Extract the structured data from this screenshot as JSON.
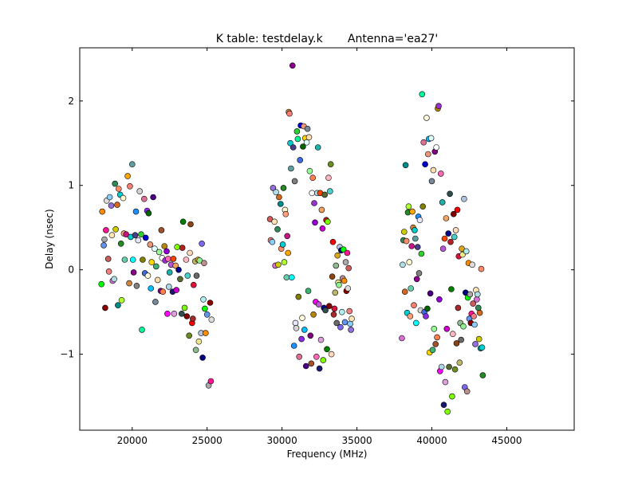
{
  "chart_data": {
    "type": "scatter",
    "title": "K table: testdelay.k       Antenna='ea27'",
    "xlabel": "Frequency (MHz)",
    "ylabel": "Delay (nsec)",
    "xlim": [
      16500,
      49500
    ],
    "ylim": [
      -1.9,
      2.63
    ],
    "xticks": [
      20000,
      25000,
      30000,
      35000,
      40000,
      45000
    ],
    "xtick_labels": [
      "20000",
      "25000",
      "30000",
      "35000",
      "40000",
      "45000"
    ],
    "yticks": [
      -1,
      0,
      1,
      2
    ],
    "ytick_labels": [
      "−1",
      "0",
      "1",
      "2"
    ],
    "grid": false,
    "legend": "none",
    "marker": "circle",
    "palette": [
      "#00ff00",
      "#0000cc",
      "#ff0000",
      "#00cccc",
      "#cc00cc",
      "#cccc00",
      "#ffffff",
      "#ff8c00",
      "#8a2be2",
      "#a52a2a",
      "#5f9ea0",
      "#7fff00",
      "#d2691e",
      "#ff7f50",
      "#6495ed",
      "#fff8dc",
      "#dc143c",
      "#00ffff",
      "#00008b",
      "#008b8b",
      "#b8860b",
      "#a9a9a9",
      "#006400",
      "#bdb76b",
      "#8b008b",
      "#556b2f",
      "#ff8c69",
      "#9932cc",
      "#8b0000",
      "#e9967a",
      "#8fbc8f",
      "#483d8b",
      "#2f4f4f",
      "#00ced1",
      "#9400d3",
      "#ff1493",
      "#00bfff",
      "#696969",
      "#1e90ff",
      "#b22222",
      "#228b22",
      "#ff00ff",
      "#dcdcdc",
      "#ffd700",
      "#daa520",
      "#808080",
      "#008000",
      "#adff2f",
      "#ff69b4",
      "#cd5c5c",
      "#4b0082",
      "#f0e68c",
      "#e6e6fa",
      "#7cfc00",
      "#fffacd",
      "#add8e6",
      "#f08080",
      "#e0ffff",
      "#90ee90",
      "#d3d3d3",
      "#ffb6c1",
      "#ffa07a",
      "#20b2aa",
      "#87cefa",
      "#778899",
      "#b0c4de",
      "#32cd32",
      "#800000",
      "#66cdaa",
      "#ba55d3",
      "#9370db",
      "#3cb371",
      "#7b68ee",
      "#00fa9a",
      "#48d1cc",
      "#c71585",
      "#191970",
      "#ffe4b5",
      "#ffdead",
      "#000080",
      "#808000",
      "#6b8e23",
      "#ffa500",
      "#ff4500",
      "#da70d6",
      "#98fb98",
      "#afeeee",
      "#db7093",
      "#ffdab9",
      "#cd853f",
      "#dda0dd",
      "#b0e0e6",
      "#800080",
      "#bc8f8f",
      "#4169e1",
      "#8b4513",
      "#fa8072",
      "#f4a460",
      "#2e8b57",
      "#a0522d"
    ],
    "points": [
      [
        17950,
        -0.17
      ],
      [
        18000,
        0.69
      ],
      [
        18100,
        0.29
      ],
      [
        18150,
        0.36
      ],
      [
        18200,
        -0.45
      ],
      [
        18250,
        0.47
      ],
      [
        18300,
        0.82
      ],
      [
        18400,
        0.13
      ],
      [
        18450,
        -0.02
      ],
      [
        18500,
        0.86
      ],
      [
        18600,
        0.76
      ],
      [
        18650,
        0.41
      ],
      [
        18700,
        -0.13
      ],
      [
        18800,
        -0.11
      ],
      [
        18850,
        1.02
      ],
      [
        18900,
        0.48
      ],
      [
        19000,
        0.77
      ],
      [
        19050,
        -0.42
      ],
      [
        19100,
        0.96
      ],
      [
        19200,
        0.89
      ],
      [
        19250,
        0.31
      ],
      [
        19300,
        -0.36
      ],
      [
        19400,
        0.85
      ],
      [
        19450,
        0.43
      ],
      [
        19500,
        0.12
      ],
      [
        19600,
        0.42
      ],
      [
        19700,
        1.11
      ],
      [
        19800,
        -0.16
      ],
      [
        19850,
        0.99
      ],
      [
        19900,
        0.39
      ],
      [
        20000,
        1.25
      ],
      [
        20050,
        0.12
      ],
      [
        20100,
        -0.03
      ],
      [
        20200,
        0.41
      ],
      [
        20250,
        0.69
      ],
      [
        20300,
        -0.19
      ],
      [
        20400,
        0.35
      ],
      [
        20500,
        0.93
      ],
      [
        20600,
        0.42
      ],
      [
        20650,
        -0.71
      ],
      [
        20700,
        0.12
      ],
      [
        20800,
        0.84
      ],
      [
        20850,
        -0.04
      ],
      [
        20900,
        0.38
      ],
      [
        21000,
        0.7
      ],
      [
        21050,
        -0.07
      ],
      [
        21100,
        0.67
      ],
      [
        21200,
        0.3
      ],
      [
        21250,
        -0.22
      ],
      [
        21300,
        0.09
      ],
      [
        21400,
        0.86
      ],
      [
        21500,
        0.25
      ],
      [
        21550,
        -0.38
      ],
      [
        21600,
        0.04
      ],
      [
        21700,
        -0.12
      ],
      [
        21800,
        0.21
      ],
      [
        21900,
        -0.25
      ],
      [
        21950,
        0.47
      ],
      [
        22000,
        0.14
      ],
      [
        22050,
        -0.26
      ],
      [
        22150,
        0.28
      ],
      [
        22200,
        0.11
      ],
      [
        22300,
        0.22
      ],
      [
        22350,
        -0.52
      ],
      [
        22400,
        0.13
      ],
      [
        22450,
        -0.2
      ],
      [
        22500,
        -0.03
      ],
      [
        22600,
        0.06
      ],
      [
        22700,
        -0.26
      ],
      [
        22750,
        0.13
      ],
      [
        22800,
        -0.52
      ],
      [
        22900,
        0.05
      ],
      [
        22950,
        -0.24
      ],
      [
        23000,
        0.27
      ],
      [
        23100,
        0.0
      ],
      [
        23200,
        -0.11
      ],
      [
        23300,
        -0.52
      ],
      [
        23350,
        0.26
      ],
      [
        23400,
        0.57
      ],
      [
        23500,
        -0.45
      ],
      [
        23600,
        0.12
      ],
      [
        23650,
        -0.55
      ],
      [
        23700,
        -0.07
      ],
      [
        23800,
        -0.78
      ],
      [
        23850,
        0.2
      ],
      [
        23900,
        0.54
      ],
      [
        24000,
        -0.63
      ],
      [
        24050,
        -0.58
      ],
      [
        24100,
        -0.18
      ],
      [
        24200,
        0.1
      ],
      [
        24250,
        -0.95
      ],
      [
        24300,
        -0.07
      ],
      [
        24400,
        0.12
      ],
      [
        24450,
        -0.85
      ],
      [
        24500,
        0.11
      ],
      [
        24600,
        -0.75
      ],
      [
        24650,
        0.31
      ],
      [
        24700,
        -1.04
      ],
      [
        24750,
        -0.35
      ],
      [
        24800,
        0.08
      ],
      [
        24850,
        -0.46
      ],
      [
        24900,
        -0.75
      ],
      [
        25000,
        -0.53
      ],
      [
        25100,
        -1.37
      ],
      [
        25200,
        -0.39
      ],
      [
        25250,
        -1.32
      ],
      [
        25300,
        -0.59
      ],
      [
        29200,
        0.6
      ],
      [
        29250,
        0.35
      ],
      [
        29350,
        0.33
      ],
      [
        29400,
        0.97
      ],
      [
        29500,
        0.57
      ],
      [
        29550,
        0.05
      ],
      [
        29600,
        0.92
      ],
      [
        29700,
        0.48
      ],
      [
        29750,
        0.06
      ],
      [
        29800,
        0.86
      ],
      [
        29900,
        0.78
      ],
      [
        29950,
        0.25
      ],
      [
        30050,
        0.3
      ],
      [
        30100,
        0.97
      ],
      [
        30150,
        0.09
      ],
      [
        30200,
        0.71
      ],
      [
        30250,
        0.66
      ],
      [
        30300,
        -0.09
      ],
      [
        30350,
        0.4
      ],
      [
        30400,
        0.2
      ],
      [
        30450,
        1.87
      ],
      [
        30500,
        1.85
      ],
      [
        30550,
        1.5
      ],
      [
        30600,
        1.2
      ],
      [
        30650,
        -0.09
      ],
      [
        30700,
        2.42
      ],
      [
        30750,
        1.45
      ],
      [
        30800,
        -0.9
      ],
      [
        30850,
        1.05
      ],
      [
        30900,
        -0.63
      ],
      [
        30950,
        -0.69
      ],
      [
        31000,
        1.64
      ],
      [
        31050,
        1.55
      ],
      [
        31100,
        -0.32
      ],
      [
        31150,
        -1.03
      ],
      [
        31200,
        1.3
      ],
      [
        31250,
        1.71
      ],
      [
        31300,
        -0.82
      ],
      [
        31350,
        -0.57
      ],
      [
        31400,
        1.46
      ],
      [
        31450,
        1.7
      ],
      [
        31500,
        -0.71
      ],
      [
        31550,
        1.56
      ],
      [
        31600,
        -1.14
      ],
      [
        31650,
        1.51
      ],
      [
        31700,
        1.67
      ],
      [
        31750,
        -0.25
      ],
      [
        31800,
        1.57
      ],
      [
        31850,
        1.17
      ],
      [
        31900,
        -0.78
      ],
      [
        31950,
        -1.11
      ],
      [
        32000,
        0.91
      ],
      [
        32050,
        1.09
      ],
      [
        32100,
        -0.53
      ],
      [
        32150,
        0.79
      ],
      [
        32200,
        0.56
      ],
      [
        32250,
        -0.38
      ],
      [
        32300,
        -1.03
      ],
      [
        32350,
        0.91
      ],
      [
        32400,
        1.45
      ],
      [
        32450,
        -0.41
      ],
      [
        32500,
        -1.17
      ],
      [
        32550,
        0.91
      ],
      [
        32600,
        -0.83
      ],
      [
        32650,
        0.71
      ],
      [
        32700,
        0.49
      ],
      [
        32750,
        -1.07
      ],
      [
        32800,
        -0.45
      ],
      [
        32850,
        0.89
      ],
      [
        32900,
        -0.48
      ],
      [
        32950,
        0.59
      ],
      [
        33000,
        -0.94
      ],
      [
        33050,
        0.57
      ],
      [
        33100,
        1.09
      ],
      [
        33150,
        -0.43
      ],
      [
        33200,
        0.93
      ],
      [
        33250,
        1.25
      ],
      [
        33300,
        -1.0
      ],
      [
        33350,
        -0.08
      ],
      [
        33400,
        0.33
      ],
      [
        33450,
        -0.53
      ],
      [
        33500,
        -0.46
      ],
      [
        33550,
        -0.27
      ],
      [
        33600,
        0.05
      ],
      [
        33650,
        -0.63
      ],
      [
        33700,
        0.17
      ],
      [
        33750,
        -0.15
      ],
      [
        33800,
        -0.18
      ],
      [
        33850,
        0.27
      ],
      [
        33900,
        -0.68
      ],
      [
        33950,
        0.23
      ],
      [
        34000,
        -0.5
      ],
      [
        34050,
        -0.1
      ],
      [
        34100,
        0.24
      ],
      [
        34150,
        -0.13
      ],
      [
        34200,
        -0.62
      ],
      [
        34250,
        0.09
      ],
      [
        34300,
        -0.25
      ],
      [
        34350,
        0.2
      ],
      [
        34400,
        -0.22
      ],
      [
        34450,
        0.02
      ],
      [
        34500,
        -0.49
      ],
      [
        34550,
        -0.64
      ],
      [
        34600,
        -0.71
      ],
      [
        34650,
        -0.58
      ],
      [
        38000,
        -0.81
      ],
      [
        38050,
        0.06
      ],
      [
        38100,
        0.35
      ],
      [
        38150,
        0.45
      ],
      [
        38200,
        -0.26
      ],
      [
        38250,
        1.24
      ],
      [
        38300,
        0.34
      ],
      [
        38350,
        -0.51
      ],
      [
        38400,
        0.68
      ],
      [
        38450,
        0.75
      ],
      [
        38500,
        0.09
      ],
      [
        38550,
        -0.55
      ],
      [
        38600,
        -0.22
      ],
      [
        38650,
        0.28
      ],
      [
        38700,
        0.69
      ],
      [
        38750,
        0.5
      ],
      [
        38800,
        -0.42
      ],
      [
        38850,
        0.47
      ],
      [
        38900,
        0.37
      ],
      [
        38950,
        -0.63
      ],
      [
        39000,
        -0.11
      ],
      [
        39050,
        0.27
      ],
      [
        39100,
        0.63
      ],
      [
        39150,
        -0.04
      ],
      [
        39200,
        0.59
      ],
      [
        39250,
        -0.48
      ],
      [
        39300,
        0.19
      ],
      [
        39350,
        2.08
      ],
      [
        39400,
        0.75
      ],
      [
        39450,
        1.51
      ],
      [
        39500,
        -0.5
      ],
      [
        39550,
        1.25
      ],
      [
        39600,
        -0.55
      ],
      [
        39650,
        1.8
      ],
      [
        39700,
        -0.46
      ],
      [
        39750,
        1.37
      ],
      [
        39800,
        1.55
      ],
      [
        39850,
        -0.98
      ],
      [
        39900,
        -0.28
      ],
      [
        39950,
        1.56
      ],
      [
        40000,
        1.05
      ],
      [
        40050,
        -0.95
      ],
      [
        40100,
        1.18
      ],
      [
        40150,
        -0.7
      ],
      [
        40200,
        1.4
      ],
      [
        40250,
        -0.88
      ],
      [
        40300,
        1.45
      ],
      [
        40350,
        -0.8
      ],
      [
        40400,
        1.91
      ],
      [
        40450,
        1.94
      ],
      [
        40500,
        -0.35
      ],
      [
        40550,
        -1.2
      ],
      [
        40600,
        1.14
      ],
      [
        40650,
        -1.15
      ],
      [
        40700,
        0.8
      ],
      [
        40750,
        0.25
      ],
      [
        40800,
        -1.6
      ],
      [
        40850,
        0.37
      ],
      [
        40900,
        -1.33
      ],
      [
        40950,
        0.61
      ],
      [
        41000,
        -0.7
      ],
      [
        41050,
        -1.68
      ],
      [
        41100,
        0.43
      ],
      [
        41150,
        -1.15
      ],
      [
        41200,
        0.9
      ],
      [
        41250,
        0.33
      ],
      [
        41300,
        -0.23
      ],
      [
        41350,
        -1.5
      ],
      [
        41400,
        -0.76
      ],
      [
        41450,
        0.66
      ],
      [
        41500,
        0.39
      ],
      [
        41550,
        -1.18
      ],
      [
        41600,
        0.47
      ],
      [
        41650,
        -0.87
      ],
      [
        41700,
        0.71
      ],
      [
        41750,
        -0.45
      ],
      [
        41800,
        0.16
      ],
      [
        41850,
        -1.1
      ],
      [
        41900,
        -0.63
      ],
      [
        41950,
        -0.83
      ],
      [
        42000,
        0.25
      ],
      [
        42050,
        0.18
      ],
      [
        42100,
        -0.67
      ],
      [
        42150,
        0.84
      ],
      [
        42200,
        -1.39
      ],
      [
        42250,
        -0.27
      ],
      [
        42300,
        0.22
      ],
      [
        42350,
        -1.44
      ],
      [
        42400,
        -0.33
      ],
      [
        42450,
        0.08
      ],
      [
        42500,
        -0.58
      ],
      [
        42550,
        -0.29
      ],
      [
        42600,
        -0.63
      ],
      [
        42650,
        -0.52
      ],
      [
        42700,
        0.06
      ],
      [
        42750,
        -0.4
      ],
      [
        42800,
        -0.55
      ],
      [
        42850,
        -0.65
      ],
      [
        42900,
        -0.88
      ],
      [
        42950,
        -0.24
      ],
      [
        43000,
        -0.35
      ],
      [
        43050,
        -0.29
      ],
      [
        43100,
        -0.45
      ],
      [
        43150,
        -0.82
      ],
      [
        43200,
        -0.51
      ],
      [
        43250,
        -0.93
      ],
      [
        43300,
        0.01
      ],
      [
        43350,
        -0.92
      ],
      [
        43400,
        -1.25
      ]
    ]
  }
}
